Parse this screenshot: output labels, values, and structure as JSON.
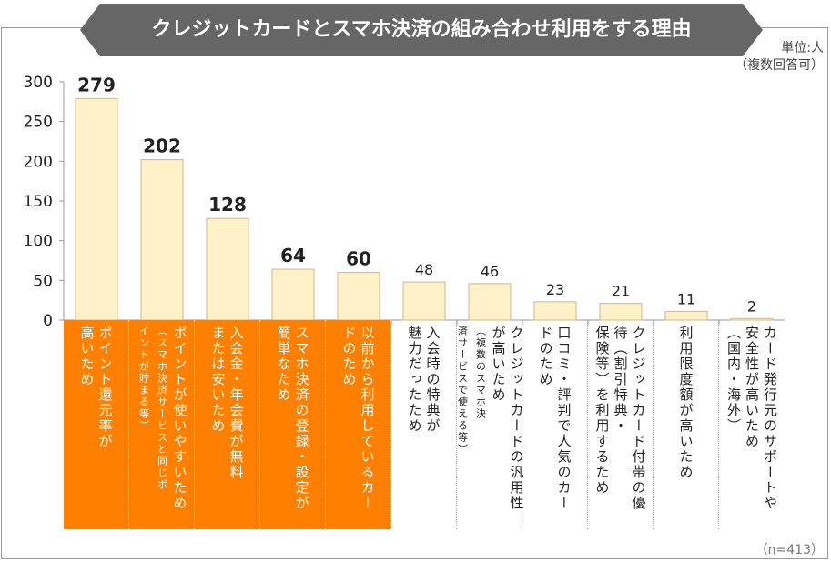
{
  "title": "クレジットカードとスマホ決済の組み合わせ利用をする理由",
  "unit_line1": "単位:人",
  "unit_line2": "（複数回答可）",
  "sample_note": "（n=413）",
  "colors": {
    "banner": "#666666",
    "bar_fill": "#FEF1C8",
    "bar_stroke": "#C9B98C",
    "highlight": "#FF8000"
  },
  "chart_data": {
    "type": "bar",
    "title": "クレジットカードとスマホ決済の組み合わせ利用をする理由",
    "ylim": [
      0,
      300
    ],
    "yticks": [
      0,
      50,
      100,
      150,
      200,
      250,
      300
    ],
    "grid": false,
    "highlighted_count": 5,
    "categories": [
      {
        "lines": [
          "ポイント還元率が",
          "高いため"
        ],
        "small": []
      },
      {
        "lines": [
          "ポイントが使いやすいため"
        ],
        "small": [
          "（スマホ決済サービスと同じポ",
          "イントが貯まる等）"
        ]
      },
      {
        "lines": [
          "入会金・年会費が無料",
          "または安いため"
        ],
        "small": []
      },
      {
        "lines": [
          "スマホ決済の登録・設定が",
          "簡単なため"
        ],
        "small": []
      },
      {
        "lines": [
          "以前から利用しているカー",
          "ドのため"
        ],
        "small": []
      },
      {
        "lines": [
          "入会時の特典が",
          "魅力だったため"
        ],
        "small": []
      },
      {
        "lines": [
          "クレジットカードの汎用性",
          "が高いため"
        ],
        "small": [
          "（複数のスマホ決",
          "済サービスで使える等）"
        ]
      },
      {
        "lines": [
          "口コミ・評判で人気のカー",
          "ドのため"
        ],
        "small": []
      },
      {
        "lines": [
          "クレジットカード付帯の優",
          "待（割引特典・",
          "保険等）を利用するため"
        ],
        "small": []
      },
      {
        "lines": [
          "利用限度額が高いため"
        ],
        "small": []
      },
      {
        "lines": [
          "カード発行元のサポートや",
          "安全性が高いため",
          "（国内・海外）"
        ],
        "small": []
      }
    ],
    "values": [
      279,
      202,
      128,
      64,
      60,
      48,
      46,
      23,
      21,
      11,
      2
    ]
  }
}
